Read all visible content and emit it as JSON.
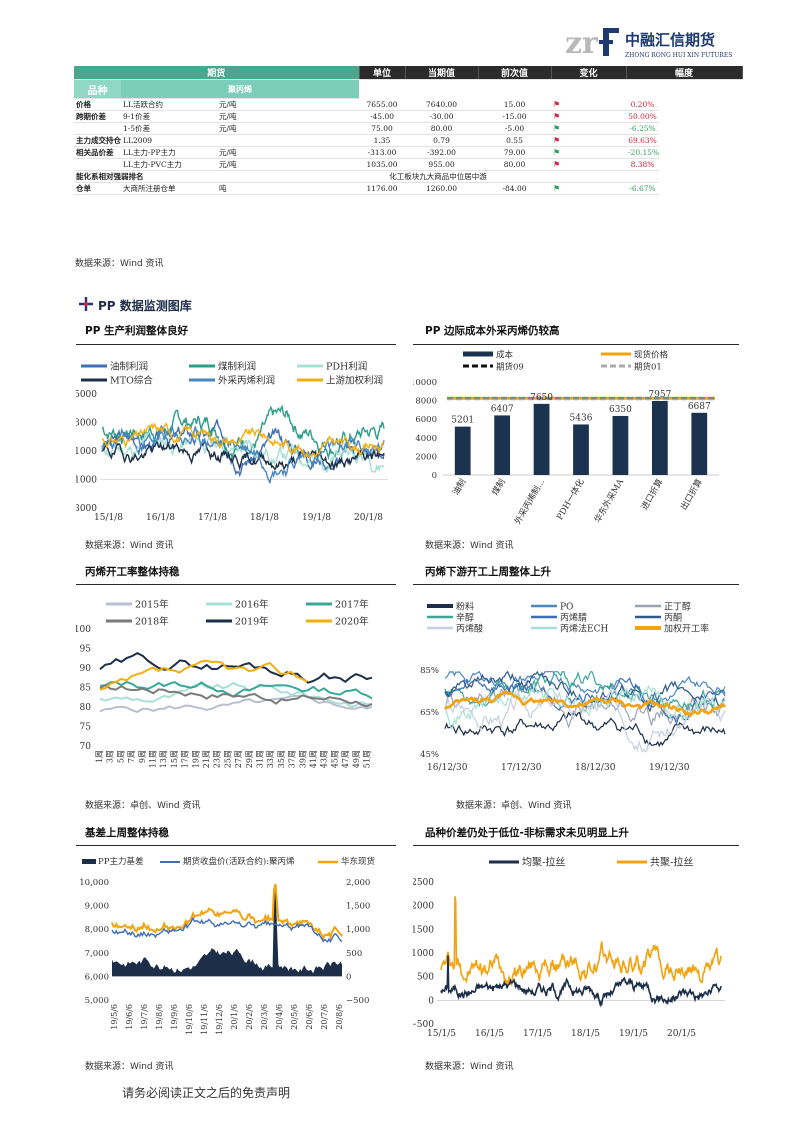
{
  "logo": {
    "name_cn": "中融汇信期货",
    "name_en": "ZHONG RONG HUI XIN FUTURES"
  },
  "table": {
    "headers": {
      "main": "期货",
      "unit": "单位",
      "current": "当期值",
      "previous": "前次值",
      "change": "变化",
      "amplitude": "幅度"
    },
    "category": "品种",
    "subcategory": "聚丙烯",
    "rows": [
      {
        "label": "价格",
        "item": "LL活跃合约",
        "unit": "元/吨",
        "current": "7655.00",
        "previous": "7640.00",
        "change": "15.00",
        "amp": "0.20%",
        "dir": "up"
      },
      {
        "label": "跨期价差",
        "item": "9-1价差",
        "unit": "元/吨",
        "current": "-45.00",
        "previous": "-30.00",
        "change": "-15.00",
        "amp": "50.00%",
        "dir": "up"
      },
      {
        "label": "",
        "item": "1-5价差",
        "unit": "元/吨",
        "current": "75.00",
        "previous": "80.00",
        "change": "-5.00",
        "amp": "-6.25%",
        "dir": "down"
      },
      {
        "label": "主力成交持仓比",
        "item": "LL2009",
        "unit": "",
        "current": "1.35",
        "previous": "0.79",
        "change": "0.55",
        "amp": "69.63%",
        "dir": "up"
      },
      {
        "label": "相关品价差",
        "item": "LL主力-PP主力",
        "unit": "元/吨",
        "current": "-313.00",
        "previous": "-392.00",
        "change": "79.00",
        "amp": "-20.15%",
        "dir": "down"
      },
      {
        "label": "",
        "item": "LL主力-PVC主力",
        "unit": "元/吨",
        "current": "1035.00",
        "previous": "955.00",
        "change": "80.00",
        "amp": "8.38%",
        "dir": "up"
      },
      {
        "label": "能化系相对强弱排名",
        "item": "",
        "unit": "",
        "merged": "化工板块九大商品中位居中游",
        "current": "",
        "previous": "",
        "change": "",
        "amp": "",
        "dir": ""
      },
      {
        "label": "仓单",
        "item": "大商所注册仓单",
        "unit": "吨",
        "current": "1176.00",
        "previous": "1260.00",
        "change": "-84.00",
        "amp": "-6.67%",
        "dir": "down"
      }
    ],
    "source": "数据来源：Wind 资讯"
  },
  "section_title": "PP 数据监测图库",
  "charts": {
    "c1": {
      "title": "PP 生产利润整体良好",
      "source": "数据来源：Wind 资讯"
    },
    "c2": {
      "title": "PP 边际成本外采丙烯仍较高",
      "source": "数据来源：Wind 资讯"
    },
    "c3": {
      "title": "丙烯开工率整体持稳",
      "source": "数据来源：卓创、Wind 资讯"
    },
    "c4": {
      "title": "丙烯下游开工上周整体上升",
      "source": "数据来源：卓创、Wind 资讯"
    },
    "c5": {
      "title": "基差上周整体持稳",
      "source": "数据来源：Wind 资讯"
    },
    "c6": {
      "title": "品种价差仍处于低位-非标需求未见明显上升",
      "source": "数据来源：Wind 资讯"
    }
  },
  "chart_data": [
    {
      "type": "line",
      "id": "profit",
      "series": [
        {
          "name": "油制利润",
          "color": "#3f6fb5"
        },
        {
          "name": "煤制利润",
          "color": "#2f9c8c"
        },
        {
          "name": "PDH利润",
          "color": "#a8e0d4"
        },
        {
          "name": "MTO综合",
          "color": "#1c2e48"
        },
        {
          "name": "外采丙烯利润",
          "color": "#4a86bf"
        },
        {
          "name": "上游加权利润",
          "color": "#f2b00f"
        }
      ],
      "yticks": [
        "5000",
        "3000",
        "1000",
        "−1000",
        "−3000"
      ],
      "ylim": [
        -3000,
        5000
      ],
      "xticks": [
        "15/1/8",
        "16/1/8",
        "17/1/8",
        "18/1/8",
        "19/1/8",
        "20/1/8"
      ]
    },
    {
      "type": "bar",
      "id": "cost",
      "categories": [
        "油制",
        "煤制",
        "外采丙烯制...",
        "PDH一体化",
        "华东外采MA",
        "进口折算",
        "出口折算"
      ],
      "values": [
        5201,
        6407,
        7650,
        5436,
        6350,
        7957,
        6687
      ],
      "value_labels": [
        "5201",
        "6407",
        "7650",
        "5436",
        "6350",
        "7957",
        "6687"
      ],
      "lines": {
        "spot": 8250,
        "f09": 8200,
        "f01": 8150
      },
      "legend": [
        "成本",
        "现货价格",
        "期货09",
        "期货01"
      ],
      "yticks": [
        "10000",
        "8000",
        "6000",
        "4000",
        "2000",
        "0"
      ],
      "ylim": [
        0,
        10000
      ]
    },
    {
      "type": "line",
      "id": "run-rate",
      "series": [
        {
          "name": "2015年",
          "color": "#b9bfd0"
        },
        {
          "name": "2016年",
          "color": "#a8e0d4"
        },
        {
          "name": "2017年",
          "color": "#3aa898"
        },
        {
          "name": "2018年",
          "color": "#7b7b7b"
        },
        {
          "name": "2019年",
          "color": "#1c2e48"
        },
        {
          "name": "2020年",
          "color": "#f2b00f"
        }
      ],
      "yticks": [
        "100",
        "95",
        "90",
        "85",
        "80",
        "75",
        "70"
      ],
      "ylim": [
        70,
        100
      ],
      "xticks": [
        "1周",
        "3周",
        "5周",
        "7周",
        "9周",
        "11周",
        "13周",
        "15周",
        "17周",
        "19周",
        "21周",
        "23周",
        "25周",
        "27周",
        "29周",
        "31周",
        "33周",
        "35周",
        "37周",
        "39周",
        "41周",
        "43周",
        "45周",
        "47周",
        "49周",
        "51周"
      ]
    },
    {
      "type": "line",
      "id": "downstream",
      "series": [
        {
          "name": "粉料",
          "color": "#1c2e48"
        },
        {
          "name": "PO",
          "color": "#4a86bf"
        },
        {
          "name": "正丁醇",
          "color": "#9aa3b5"
        },
        {
          "name": "辛醇",
          "color": "#3aa898"
        },
        {
          "name": "丙烯腈",
          "color": "#3f6fb5"
        },
        {
          "name": "丙酮",
          "color": "#2f5a8c"
        },
        {
          "name": "丙烯酸",
          "color": "#c8cfe0"
        },
        {
          "name": "丙烯法ECH",
          "color": "#a8e0d4"
        },
        {
          "name": "加权开工率",
          "color": "#f2a30f"
        }
      ],
      "yticks": [
        "85%",
        "65%",
        "45%"
      ],
      "xticks": [
        "16/12/30",
        "17/12/30",
        "18/12/30",
        "19/12/30"
      ]
    },
    {
      "type": "line",
      "id": "basis",
      "series": [
        {
          "name": "PP主力基差",
          "color": "#1c2e48"
        },
        {
          "name": "期货收盘价(活跃合约):聚丙烯",
          "color": "#3f6fb5"
        },
        {
          "name": "华东现货",
          "color": "#f2a30f"
        }
      ],
      "yticks": [
        "10,000",
        "9,000",
        "8,000",
        "7,000",
        "6,000",
        "5,000"
      ],
      "y2ticks": [
        "2,000",
        "1,500",
        "1,000",
        "500",
        "0",
        "−500"
      ],
      "xticks": [
        "19/5/6",
        "19/6/6",
        "19/7/6",
        "19/8/6",
        "19/9/6",
        "19/10/6",
        "19/11/6",
        "19/12/6",
        "20/1/6",
        "20/2/6",
        "20/3/6",
        "20/4/6",
        "20/5/6",
        "20/6/6",
        "20/7/6",
        "20/8/6"
      ]
    },
    {
      "type": "line",
      "id": "spread",
      "series": [
        {
          "name": "均聚-拉丝",
          "color": "#1c2e48"
        },
        {
          "name": "共聚-拉丝",
          "color": "#f2a30f"
        }
      ],
      "yticks": [
        "2500",
        "2000",
        "1500",
        "1000",
        "500",
        "0",
        "−500"
      ],
      "ylim": [
        -500,
        2500
      ],
      "xticks": [
        "15/1/5",
        "16/1/5",
        "17/1/5",
        "18/1/5",
        "19/1/5",
        "20/1/5"
      ]
    }
  ],
  "footer": "请务必阅读正文之后的免责声明"
}
